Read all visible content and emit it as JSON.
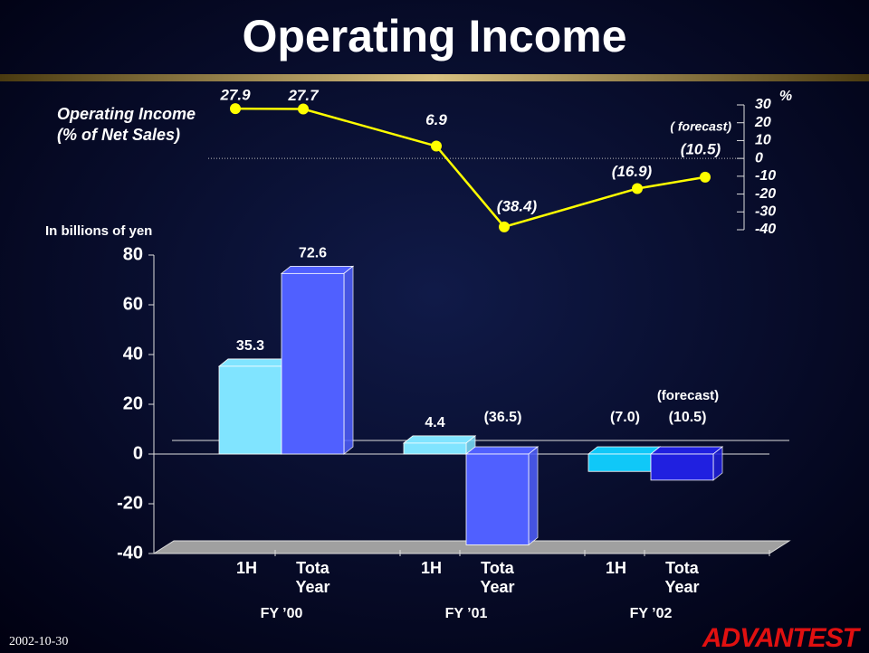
{
  "title": "Operating Income",
  "footer": {
    "date": "2002-10-30",
    "logo": "ADVANTEST"
  },
  "chart_data": [
    {
      "type": "line",
      "label_lines": [
        "Operating Income",
        "(% of Net Sales)"
      ],
      "annotation": "( forecast)",
      "unit": "%",
      "values": [
        27.9,
        27.7,
        6.9,
        -38.4,
        -16.9,
        -10.5
      ],
      "value_labels": [
        "27.9",
        "27.7",
        "6.9",
        "(38.4)",
        "(16.9)",
        "(10.5)"
      ],
      "color": "#ffff00",
      "ylim": [
        -40,
        30
      ],
      "yticks": [
        30,
        20,
        10,
        0,
        -10,
        -20,
        -30,
        -40
      ]
    },
    {
      "type": "bar",
      "y_label": "In billions of yen",
      "categories": [
        "1H",
        "Tota Year",
        "1H",
        "Tota Year",
        "1H",
        "Tota Year"
      ],
      "groups": [
        "FY ’00",
        "FY ’01",
        "FY ’02"
      ],
      "values": [
        35.3,
        72.6,
        4.4,
        -36.5,
        -7.0,
        -10.5
      ],
      "value_labels": [
        "35.3",
        "72.6",
        "4.4",
        "(36.5)",
        "(7.0)",
        "(10.5)"
      ],
      "colors": [
        "#80e4ff",
        "#5060ff",
        "#80e4ff",
        "#5060ff",
        "#10c8f8",
        "#2020e0"
      ],
      "annotation": "(forecast)",
      "ylim": [
        -40,
        80
      ],
      "yticks": [
        -40,
        -20,
        0,
        20,
        40,
        60,
        80
      ]
    }
  ]
}
